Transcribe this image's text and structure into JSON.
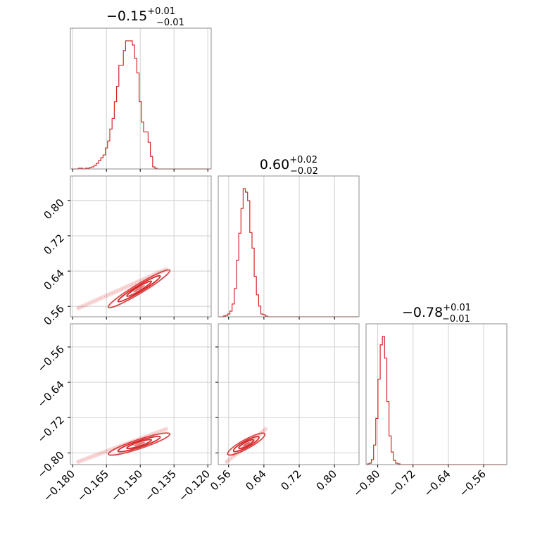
{
  "chart_data": {
    "type": "corner",
    "color": "#d62728",
    "grid": true,
    "parameters": [
      {
        "title_value": "−0.15",
        "title_plus": "+0.01",
        "title_minus": "−0.01",
        "range": [
          -0.181,
          -0.1185
        ],
        "ticks": [
          -0.18,
          -0.165,
          -0.15,
          -0.135,
          -0.12
        ],
        "tick_labels": [
          "−0.180",
          "−0.165",
          "−0.150",
          "−0.135",
          "−0.120"
        ]
      },
      {
        "title_value": "0.60",
        "title_plus": "+0.02",
        "title_minus": "−0.02",
        "range": [
          0.5365,
          0.8555
        ],
        "ticks": [
          0.56,
          0.64,
          0.72,
          0.8
        ],
        "tick_labels": [
          "0.56",
          "0.64",
          "0.72",
          "0.80"
        ]
      },
      {
        "title_value": "−0.78",
        "title_plus": "+0.01",
        "title_minus": "−0.01",
        "range": [
          -0.8265,
          -0.5075
        ],
        "ticks": [
          -0.8,
          -0.72,
          -0.64,
          -0.56
        ],
        "tick_labels": [
          "−0.80",
          "−0.72",
          "−0.64",
          "−0.56"
        ]
      }
    ],
    "histograms": [
      {
        "param": 0,
        "x": [
          -0.1805,
          -0.1795,
          -0.1785,
          -0.1775,
          -0.1765,
          -0.1755,
          -0.1745,
          -0.1735,
          -0.1725,
          -0.1715,
          -0.1705,
          -0.1695,
          -0.1685,
          -0.1675,
          -0.1665,
          -0.1655,
          -0.1645,
          -0.1635,
          -0.1625,
          -0.1615,
          -0.1605,
          -0.1595,
          -0.1585,
          -0.1575,
          -0.1565,
          -0.1555,
          -0.1545,
          -0.1535,
          -0.1525,
          -0.1515,
          -0.1505,
          -0.1495,
          -0.1485,
          -0.1475,
          -0.1465,
          -0.1455,
          -0.1445,
          -0.1435,
          -0.1425,
          -0.1415,
          -0.1405,
          -0.1395,
          -0.1385,
          -0.1375,
          -0.1365,
          -0.1355,
          -0.1345,
          -0.1335,
          -0.1325,
          -0.1315,
          -0.1305,
          -0.1295,
          -0.1285,
          -0.1275,
          -0.1265,
          -0.1255,
          -0.1245,
          -0.1235,
          -0.1225,
          -0.1215,
          -0.1205,
          -0.1195,
          -0.119
        ],
        "counts": [
          0,
          0,
          0,
          1,
          1,
          0,
          1,
          1,
          2,
          3,
          5,
          8,
          12,
          16,
          20,
          30,
          40,
          57,
          72,
          96,
          118,
          148,
          148,
          169,
          183,
          183,
          183,
          177,
          158,
          137,
          96,
          67,
          53,
          53,
          38,
          18,
          3,
          1,
          0,
          0,
          0,
          0,
          0,
          0,
          0,
          0,
          0,
          0,
          0,
          0,
          0,
          0,
          0,
          0,
          0,
          0,
          0,
          0,
          0,
          0,
          0,
          0,
          0
        ]
      },
      {
        "param": 1,
        "x": [
          0.538,
          0.543,
          0.548,
          0.553,
          0.558,
          0.563,
          0.568,
          0.573,
          0.578,
          0.583,
          0.588,
          0.593,
          0.598,
          0.603,
          0.608,
          0.613,
          0.618,
          0.623,
          0.628,
          0.633,
          0.638,
          0.643,
          0.648,
          0.653,
          0.658,
          0.663,
          0.668,
          0.673,
          0.678,
          0.683,
          0.688,
          0.693,
          0.698,
          0.703,
          0.708,
          0.713,
          0.718,
          0.723,
          0.728,
          0.733,
          0.738,
          0.743,
          0.748,
          0.753,
          0.758,
          0.763,
          0.768,
          0.773,
          0.778,
          0.783,
          0.788,
          0.793,
          0.798,
          0.803,
          0.808,
          0.813,
          0.818,
          0.823,
          0.828,
          0.833,
          0.838,
          0.843,
          0.848,
          0.853
        ],
        "counts": [
          0,
          0,
          1,
          2,
          4,
          8,
          18,
          40,
          80,
          118,
          153,
          181,
          176,
          164,
          119,
          97,
          57,
          31,
          15,
          4,
          3,
          1,
          0,
          0,
          0,
          0,
          0,
          0,
          0,
          0,
          0,
          0,
          0,
          0,
          0,
          0,
          0,
          0,
          0,
          0,
          0,
          0,
          0,
          0,
          0,
          0,
          0,
          0,
          0,
          0,
          0,
          0,
          0,
          0,
          0,
          0,
          0,
          0,
          0,
          0,
          0,
          0,
          0,
          0
        ]
      },
      {
        "param": 2,
        "x": [
          -0.8245,
          -0.8195,
          -0.8145,
          -0.8095,
          -0.8045,
          -0.7995,
          -0.7945,
          -0.7895,
          -0.7845,
          -0.7795,
          -0.7745,
          -0.7695,
          -0.7645,
          -0.7595,
          -0.7545,
          -0.7495,
          -0.7445,
          -0.7395,
          -0.7345,
          -0.7295,
          -0.7245,
          -0.7195,
          -0.7145,
          -0.7095,
          -0.7045,
          -0.6995,
          -0.6945,
          -0.6895,
          -0.6845,
          -0.6795,
          -0.6745,
          -0.6695,
          -0.6645,
          -0.6595,
          -0.6545,
          -0.6495,
          -0.6445,
          -0.6395,
          -0.6345,
          -0.6295,
          -0.6245,
          -0.6195,
          -0.6145,
          -0.6095,
          -0.6045,
          -0.5995,
          -0.5945,
          -0.5895,
          -0.5845,
          -0.5795,
          -0.5745,
          -0.5695,
          -0.5645,
          -0.5595,
          -0.5545,
          -0.5495,
          -0.5445,
          -0.5395,
          -0.5345,
          -0.5295,
          -0.5245,
          -0.5195,
          -0.5145,
          -0.5095
        ],
        "counts": [
          1,
          2,
          7,
          28,
          66,
          122,
          171,
          183,
          152,
          90,
          41,
          18,
          6,
          2,
          1,
          0,
          0,
          0,
          0,
          0,
          0,
          0,
          0,
          0,
          0,
          0,
          0,
          0,
          0,
          0,
          0,
          0,
          0,
          0,
          0,
          0,
          0,
          0,
          0,
          0,
          0,
          0,
          0,
          0,
          0,
          0,
          0,
          0,
          0,
          0,
          0,
          0,
          0,
          0,
          0,
          0,
          0,
          0,
          0,
          0,
          0,
          0,
          0,
          0
        ]
      }
    ],
    "contours_2d": [
      {
        "x_param": 0,
        "y_param": 1,
        "center": [
          -0.1505,
          0.6
        ],
        "principal_axis_end": [
          -0.1375,
          0.64
        ],
        "scatter_extent": {
          "x": [
            -0.1775,
            -0.1385
          ],
          "y": [
            0.556,
            0.644
          ]
        }
      },
      {
        "x_param": 0,
        "y_param": 2,
        "center": [
          -0.1505,
          -0.78
        ],
        "principal_axis_end": [
          -0.1375,
          -0.758
        ],
        "scatter_extent": {
          "x": [
            -0.1775,
            -0.1385
          ],
          "y": [
            -0.82,
            -0.746
          ]
        }
      },
      {
        "x_param": 1,
        "y_param": 2,
        "center": [
          0.6,
          -0.78
        ],
        "principal_axis_end": [
          0.64,
          -0.758
        ],
        "scatter_extent": {
          "x": [
            0.556,
            0.644
          ],
          "y": [
            -0.82,
            -0.746
          ]
        }
      }
    ]
  }
}
